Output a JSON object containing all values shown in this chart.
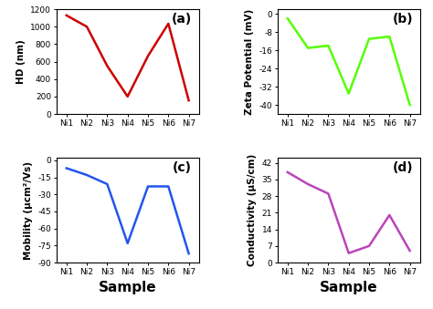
{
  "samples": [
    "Ni1",
    "Ni2",
    "Ni3",
    "Ni4",
    "Ni5",
    "Ni6",
    "Ni7"
  ],
  "hd_values": [
    1130,
    1000,
    550,
    200,
    665,
    1035,
    155
  ],
  "zeta_values": [
    -2,
    -15,
    -14,
    -35,
    -11,
    -10,
    -40
  ],
  "mobility_values": [
    -7,
    -13,
    -21,
    -73,
    -23,
    -23,
    -82
  ],
  "conductivity_values": [
    38,
    33,
    29,
    4,
    7,
    20,
    5
  ],
  "hd_color": "#cc0000",
  "zeta_color": "#55ff00",
  "mobility_color": "#2255ee",
  "conductivity_color": "#bb44bb",
  "hd_ylabel": "HD (nm)",
  "zeta_ylabel": "Zeta Potential (mV)",
  "mobility_ylabel": "Mobility (μcm²/Vs)",
  "conductivity_ylabel": "Conductivity (μS/cm)",
  "xlabel": "Sample",
  "label_a": "(a)",
  "label_b": "(b)",
  "label_c": "(c)",
  "label_d": "(d)",
  "hd_ylim": [
    0,
    1200
  ],
  "hd_yticks": [
    0,
    200,
    400,
    600,
    800,
    1000,
    1200
  ],
  "zeta_ylim": [
    -44,
    2
  ],
  "zeta_yticks": [
    0,
    -8,
    -16,
    -24,
    -32,
    -40
  ],
  "mobility_ylim": [
    -90,
    2
  ],
  "mobility_yticks": [
    0,
    -15,
    -30,
    -45,
    -60,
    -75,
    -90
  ],
  "conductivity_ylim": [
    0,
    44
  ],
  "conductivity_yticks": [
    0,
    7,
    14,
    21,
    28,
    35,
    42
  ],
  "background_color": "#ffffff",
  "line_width": 1.8,
  "tick_fontsize": 6.5,
  "label_fontsize": 7.5,
  "xlabel_fontsize": 11,
  "sublabel_fontsize": 10
}
